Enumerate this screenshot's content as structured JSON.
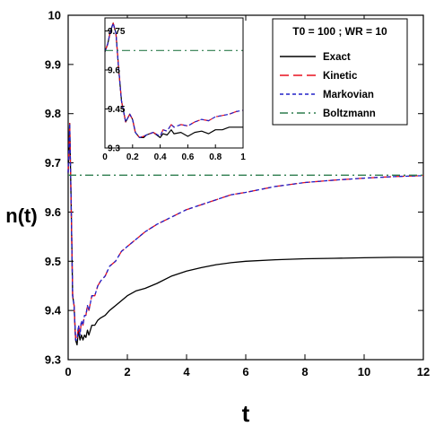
{
  "chart_data": {
    "type": "line",
    "xlabel": "t",
    "ylabel": "n(t)",
    "xlim": [
      0,
      12
    ],
    "ylim": [
      9.3,
      10
    ],
    "x_ticks": [
      0,
      2,
      4,
      6,
      8,
      10,
      12
    ],
    "y_ticks": [
      9.3,
      9.4,
      9.5,
      9.6,
      9.7,
      9.8,
      9.9,
      10
    ],
    "x_tick_labels": [
      "0",
      "2",
      "4",
      "6",
      "8",
      "10",
      "12"
    ],
    "y_tick_labels": [
      "9.3",
      "9.4",
      "9.5",
      "9.6",
      "9.7",
      "9.8",
      "9.9",
      "10"
    ],
    "legend_title": "T0 = 100 ; WR = 10",
    "legend_position": "top-right",
    "series": [
      {
        "name": "Exact",
        "color": "#000000",
        "dash": "solid",
        "x": [
          0,
          0.05,
          0.1,
          0.15,
          0.2,
          0.25,
          0.3,
          0.35,
          0.4,
          0.45,
          0.5,
          0.55,
          0.6,
          0.65,
          0.7,
          0.8,
          0.9,
          1.0,
          1.1,
          1.25,
          1.4,
          1.6,
          1.8,
          2.0,
          2.3,
          2.6,
          3.0,
          3.5,
          4.0,
          4.5,
          5.0,
          5.5,
          6.0,
          7.0,
          8.0,
          9.0,
          10.0,
          11.0,
          12.0
        ],
        "y": [
          9.68,
          9.78,
          9.62,
          9.43,
          9.41,
          9.34,
          9.33,
          9.36,
          9.34,
          9.35,
          9.34,
          9.35,
          9.345,
          9.36,
          9.35,
          9.37,
          9.37,
          9.38,
          9.385,
          9.39,
          9.4,
          9.41,
          9.42,
          9.43,
          9.44,
          9.445,
          9.455,
          9.47,
          9.48,
          9.487,
          9.493,
          9.497,
          9.5,
          9.503,
          9.505,
          9.506,
          9.507,
          9.508,
          9.508
        ]
      },
      {
        "name": "Kinetic",
        "color": "#e8101f",
        "dash": "long-dash",
        "x": [
          0,
          0.05,
          0.1,
          0.15,
          0.2,
          0.25,
          0.3,
          0.35,
          0.4,
          0.45,
          0.5,
          0.55,
          0.6,
          0.65,
          0.7,
          0.8,
          0.9,
          1.0,
          1.1,
          1.25,
          1.4,
          1.6,
          1.8,
          2.0,
          2.3,
          2.6,
          3.0,
          3.5,
          4.0,
          4.5,
          5.0,
          5.5,
          6.0,
          7.0,
          8.0,
          9.0,
          10.0,
          11.0,
          12.0
        ],
        "y": [
          9.68,
          9.78,
          9.62,
          9.43,
          9.41,
          9.34,
          9.34,
          9.37,
          9.35,
          9.38,
          9.37,
          9.39,
          9.39,
          9.41,
          9.4,
          9.43,
          9.43,
          9.45,
          9.46,
          9.47,
          9.49,
          9.5,
          9.52,
          9.53,
          9.545,
          9.56,
          9.575,
          9.59,
          9.605,
          9.615,
          9.625,
          9.635,
          9.64,
          9.652,
          9.66,
          9.665,
          9.669,
          9.672,
          9.674
        ]
      },
      {
        "name": "Markovian",
        "color": "#2020c8",
        "dash": "short-dash",
        "x": [
          0,
          0.05,
          0.1,
          0.15,
          0.2,
          0.25,
          0.3,
          0.35,
          0.4,
          0.45,
          0.5,
          0.55,
          0.6,
          0.65,
          0.7,
          0.8,
          0.9,
          1.0,
          1.1,
          1.25,
          1.4,
          1.6,
          1.8,
          2.0,
          2.3,
          2.6,
          3.0,
          3.5,
          4.0,
          4.5,
          5.0,
          5.5,
          6.0,
          7.0,
          8.0,
          9.0,
          10.0,
          11.0,
          12.0
        ],
        "y": [
          9.68,
          9.78,
          9.62,
          9.43,
          9.41,
          9.34,
          9.34,
          9.37,
          9.35,
          9.38,
          9.37,
          9.39,
          9.39,
          9.41,
          9.4,
          9.43,
          9.43,
          9.45,
          9.46,
          9.47,
          9.49,
          9.5,
          9.52,
          9.53,
          9.545,
          9.56,
          9.575,
          9.59,
          9.605,
          9.615,
          9.625,
          9.635,
          9.64,
          9.652,
          9.66,
          9.665,
          9.669,
          9.672,
          9.674
        ]
      },
      {
        "name": "Boltzmann",
        "color": "#2e7d4f",
        "dash": "dash-dot",
        "x": [
          0,
          12
        ],
        "y": [
          9.675,
          9.675
        ]
      }
    ],
    "inset": {
      "xlim": [
        0,
        1
      ],
      "ylim": [
        9.3,
        9.8
      ],
      "x_ticks": [
        0,
        0.2,
        0.4,
        0.6,
        0.8,
        1
      ],
      "y_ticks": [
        9.3,
        9.45,
        9.6,
        9.75
      ],
      "x_tick_labels": [
        "0",
        "0.2",
        "0.4",
        "0.6",
        "0.8",
        "1"
      ],
      "y_tick_labels": [
        "9.3",
        "9.45",
        "9.6",
        "9.75"
      ],
      "series": [
        {
          "name": "Exact",
          "color": "#000000",
          "dash": "solid",
          "x": [
            0,
            0.02,
            0.04,
            0.06,
            0.08,
            0.1,
            0.12,
            0.15,
            0.18,
            0.2,
            0.22,
            0.25,
            0.28,
            0.3,
            0.35,
            0.4,
            0.42,
            0.45,
            0.48,
            0.5,
            0.55,
            0.6,
            0.65,
            0.7,
            0.75,
            0.8,
            0.85,
            0.9,
            0.95,
            1.0
          ],
          "y": [
            9.67,
            9.7,
            9.75,
            9.78,
            9.74,
            9.6,
            9.48,
            9.4,
            9.43,
            9.41,
            9.36,
            9.34,
            9.34,
            9.35,
            9.36,
            9.34,
            9.355,
            9.35,
            9.37,
            9.355,
            9.36,
            9.345,
            9.36,
            9.365,
            9.355,
            9.37,
            9.37,
            9.38,
            9.38,
            9.38
          ]
        },
        {
          "name": "Kinetic",
          "color": "#e8101f",
          "dash": "long-dash",
          "x": [
            0,
            0.02,
            0.04,
            0.06,
            0.08,
            0.1,
            0.12,
            0.15,
            0.18,
            0.2,
            0.22,
            0.25,
            0.28,
            0.3,
            0.35,
            0.4,
            0.42,
            0.45,
            0.48,
            0.5,
            0.55,
            0.6,
            0.65,
            0.7,
            0.75,
            0.8,
            0.85,
            0.9,
            0.95,
            1.0
          ],
          "y": [
            9.67,
            9.7,
            9.75,
            9.78,
            9.74,
            9.6,
            9.48,
            9.4,
            9.43,
            9.41,
            9.36,
            9.34,
            9.345,
            9.35,
            9.36,
            9.345,
            9.37,
            9.365,
            9.39,
            9.38,
            9.39,
            9.385,
            9.4,
            9.41,
            9.405,
            9.42,
            9.425,
            9.43,
            9.44,
            9.445
          ]
        },
        {
          "name": "Markovian",
          "color": "#2020c8",
          "dash": "short-dash",
          "x": [
            0,
            0.02,
            0.04,
            0.06,
            0.08,
            0.1,
            0.12,
            0.15,
            0.18,
            0.2,
            0.22,
            0.25,
            0.28,
            0.3,
            0.35,
            0.4,
            0.42,
            0.45,
            0.48,
            0.5,
            0.55,
            0.6,
            0.65,
            0.7,
            0.75,
            0.8,
            0.85,
            0.9,
            0.95,
            1.0
          ],
          "y": [
            9.67,
            9.7,
            9.75,
            9.78,
            9.74,
            9.6,
            9.48,
            9.4,
            9.43,
            9.41,
            9.36,
            9.34,
            9.345,
            9.35,
            9.36,
            9.345,
            9.37,
            9.365,
            9.39,
            9.38,
            9.39,
            9.385,
            9.4,
            9.41,
            9.405,
            9.42,
            9.425,
            9.43,
            9.44,
            9.445
          ]
        },
        {
          "name": "Boltzmann",
          "color": "#2e7d4f",
          "dash": "dash-dot",
          "x": [
            0,
            1
          ],
          "y": [
            9.675,
            9.675
          ]
        }
      ]
    }
  }
}
